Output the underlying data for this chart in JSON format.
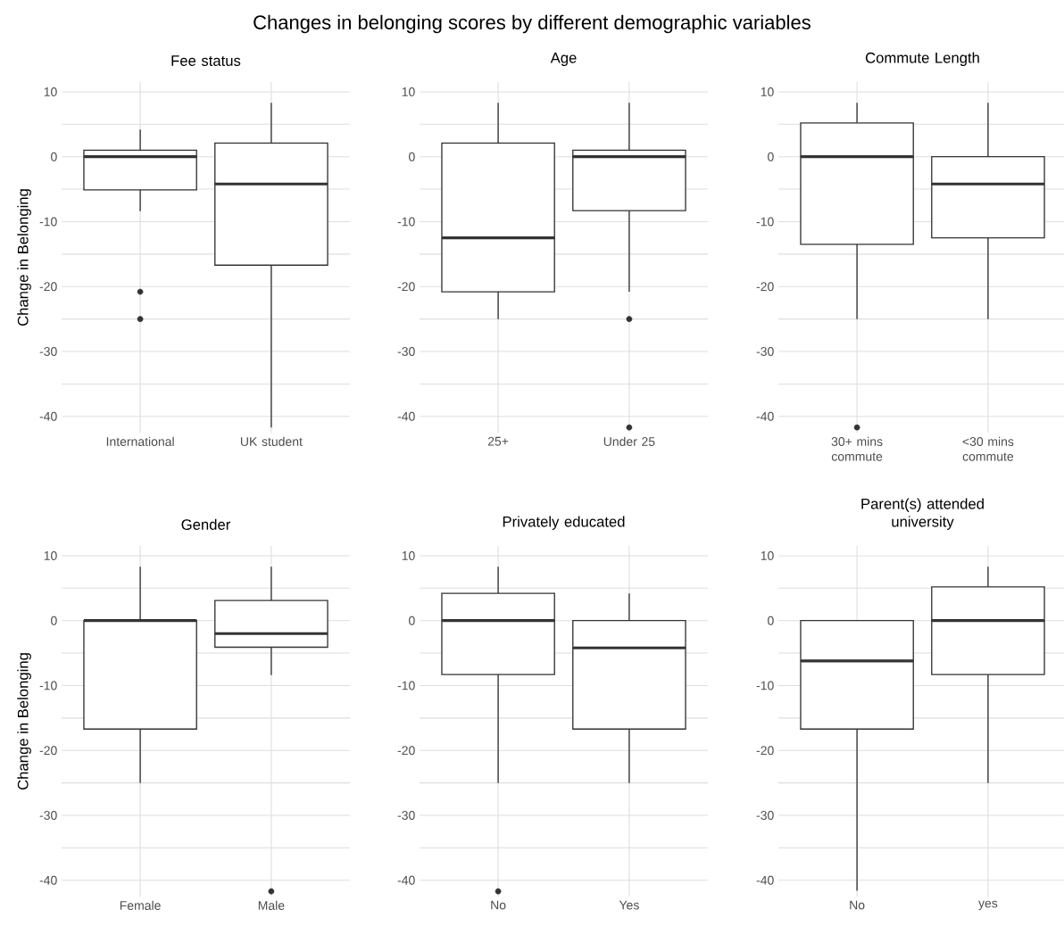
{
  "chart_data": [
    {
      "type": "other",
      "title": "Changes in belonging scores by different demographic variables"
    },
    {
      "type": "box",
      "title": "Fee status",
      "ylabel": "Change in Belonging",
      "categories": [
        "International",
        "UK student"
      ],
      "boxes": [
        {
          "low": -8.4,
          "q1": -5.1,
          "median": 0,
          "q3": 1,
          "high": 4.2,
          "outliers": [
            -20.8,
            -25
          ]
        },
        {
          "low": -41.7,
          "q1": -16.7,
          "median": -4.2,
          "q3": 2.1,
          "high": 8.3
        }
      ],
      "ylim": [
        -42.5,
        11.5
      ],
      "yticks": [
        -40,
        {
          "value": -35,
          "label": null
        },
        -30,
        {
          "value": -25,
          "label": null
        },
        -20,
        {
          "value": -15,
          "label": null
        },
        -10,
        {
          "value": -5,
          "label": null
        },
        0,
        {
          "value": 5,
          "label": null
        },
        10
      ],
      "grid": true
    },
    {
      "type": "box",
      "title": "Age",
      "categories": [
        "25+",
        "Under 25"
      ],
      "boxes": [
        {
          "low": -25,
          "q1": -20.8,
          "median": -12.5,
          "q3": 2.1,
          "high": 8.3
        },
        {
          "low": -20.8,
          "q1": -8.3,
          "median": 0,
          "q3": 1,
          "high": 8.3,
          "outliers": [
            -25,
            -41.7
          ]
        }
      ],
      "ylim": [
        -42.5,
        11.5
      ],
      "yticks": [
        -40,
        {
          "value": -35,
          "label": null
        },
        -30,
        {
          "value": -25,
          "label": null
        },
        -20,
        {
          "value": -15,
          "label": null
        },
        -10,
        {
          "value": -5,
          "label": null
        },
        0,
        {
          "value": 5,
          "label": null
        },
        10
      ],
      "grid": true
    },
    {
      "type": "box",
      "title": "Commute Length",
      "categories": [
        "30+ mins commute",
        "<30 mins commute"
      ],
      "boxes": [
        {
          "low": -25,
          "q1": -13.5,
          "median": 0,
          "q3": 5.2,
          "high": 8.3,
          "outliers": [
            -41.7
          ]
        },
        {
          "low": -25,
          "q1": -12.5,
          "median": -4.2,
          "q3": 0,
          "high": 8.3
        }
      ],
      "ylim": [
        -42.5,
        11.5
      ],
      "yticks": [
        -40,
        {
          "value": -35,
          "label": null
        },
        -30,
        {
          "value": -25,
          "label": null
        },
        -20,
        {
          "value": -15,
          "label": null
        },
        -10,
        {
          "value": -5,
          "label": null
        },
        0,
        {
          "value": 5,
          "label": null
        },
        10
      ],
      "grid": true
    },
    {
      "type": "box",
      "title": "Gender",
      "ylabel": "Change in Belonging",
      "categories": [
        "Female",
        "Male"
      ],
      "boxes": [
        {
          "low": -25,
          "q1": -16.7,
          "median": 0,
          "q3": 0,
          "high": 8.3
        },
        {
          "low": -8.4,
          "q1": -4.1,
          "median": -2.0,
          "q3": 3.1,
          "high": 8.3,
          "outliers": [
            -41.7
          ]
        }
      ],
      "ylim": [
        -42.5,
        11.5
      ],
      "yticks": [
        -40,
        {
          "value": -35,
          "label": null
        },
        -30,
        {
          "value": -25,
          "label": null
        },
        -20,
        {
          "value": -15,
          "label": null
        },
        -10,
        {
          "value": -5,
          "label": null
        },
        0,
        {
          "value": 5,
          "label": null
        },
        10
      ],
      "grid": true
    },
    {
      "type": "box",
      "title": "Privately educated",
      "categories": [
        "No",
        "Yes"
      ],
      "boxes": [
        {
          "low": -25,
          "q1": -8.3,
          "median": 0,
          "q3": 4.2,
          "high": 8.3,
          "outliers": [
            -41.7
          ]
        },
        {
          "low": -25,
          "q1": -16.7,
          "median": -4.2,
          "q3": 0,
          "high": 4.2
        }
      ],
      "ylim": [
        -42.5,
        11.5
      ],
      "yticks": [
        -40,
        {
          "value": -35,
          "label": null
        },
        -30,
        {
          "value": -25,
          "label": null
        },
        -20,
        {
          "value": -15,
          "label": null
        },
        -10,
        {
          "value": -5,
          "label": null
        },
        0,
        {
          "value": 5,
          "label": null
        },
        10
      ],
      "grid": true
    },
    {
      "type": "box",
      "title": "Parent(s) attended university",
      "categories": [
        "No",
        "yes"
      ],
      "boxes": [
        {
          "low": -41.6,
          "q1": -16.7,
          "median": -6.2,
          "q3": 0,
          "high": 0
        },
        {
          "low": -25,
          "q1": -8.3,
          "median": 0,
          "q3": 5.2,
          "high": 8.3
        }
      ],
      "ylim": [
        -42.5,
        11.5
      ],
      "yticks": [
        -40,
        {
          "value": -35,
          "label": null
        },
        -30,
        {
          "value": -25,
          "label": null
        },
        -20,
        {
          "value": -15,
          "label": null
        },
        -10,
        {
          "value": -5,
          "label": null
        },
        0,
        {
          "value": 5,
          "label": null
        },
        10
      ],
      "grid": true
    }
  ]
}
